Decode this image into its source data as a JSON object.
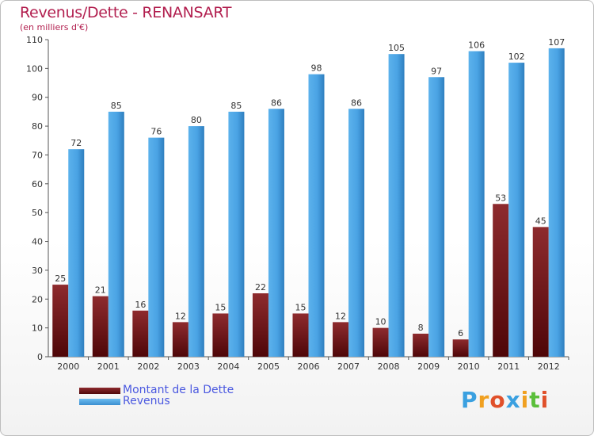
{
  "chart_data": {
    "type": "bar",
    "title": "Revenus/Dette - RENANSART",
    "subtitle": "(en milliers d'€)",
    "categories": [
      "2000",
      "2001",
      "2002",
      "2003",
      "2004",
      "2005",
      "2006",
      "2007",
      "2008",
      "2009",
      "2010",
      "2011",
      "2012"
    ],
    "series": [
      {
        "name": "Montant de la Dette",
        "values": [
          25,
          21,
          16,
          12,
          15,
          22,
          15,
          12,
          10,
          8,
          6,
          53,
          45
        ],
        "color": "#7a1a1c"
      },
      {
        "name": "Revenus",
        "values": [
          72,
          85,
          76,
          80,
          85,
          86,
          98,
          86,
          105,
          97,
          106,
          102,
          107
        ],
        "color": "#4a9fe0"
      }
    ],
    "ylim": [
      0,
      110
    ],
    "yticks": [
      0,
      10,
      20,
      30,
      40,
      50,
      60,
      70,
      80,
      90,
      100,
      110
    ],
    "grid": false,
    "legend_position": "bottom-left"
  },
  "logo": {
    "letters": [
      "P",
      "r",
      "o",
      "x",
      "i",
      "t",
      "i"
    ],
    "colors": [
      "#3aa0e0",
      "#f0a020",
      "#e0502a",
      "#3aa0e0",
      "#f0a020",
      "#5abf3a",
      "#e0502a"
    ]
  }
}
